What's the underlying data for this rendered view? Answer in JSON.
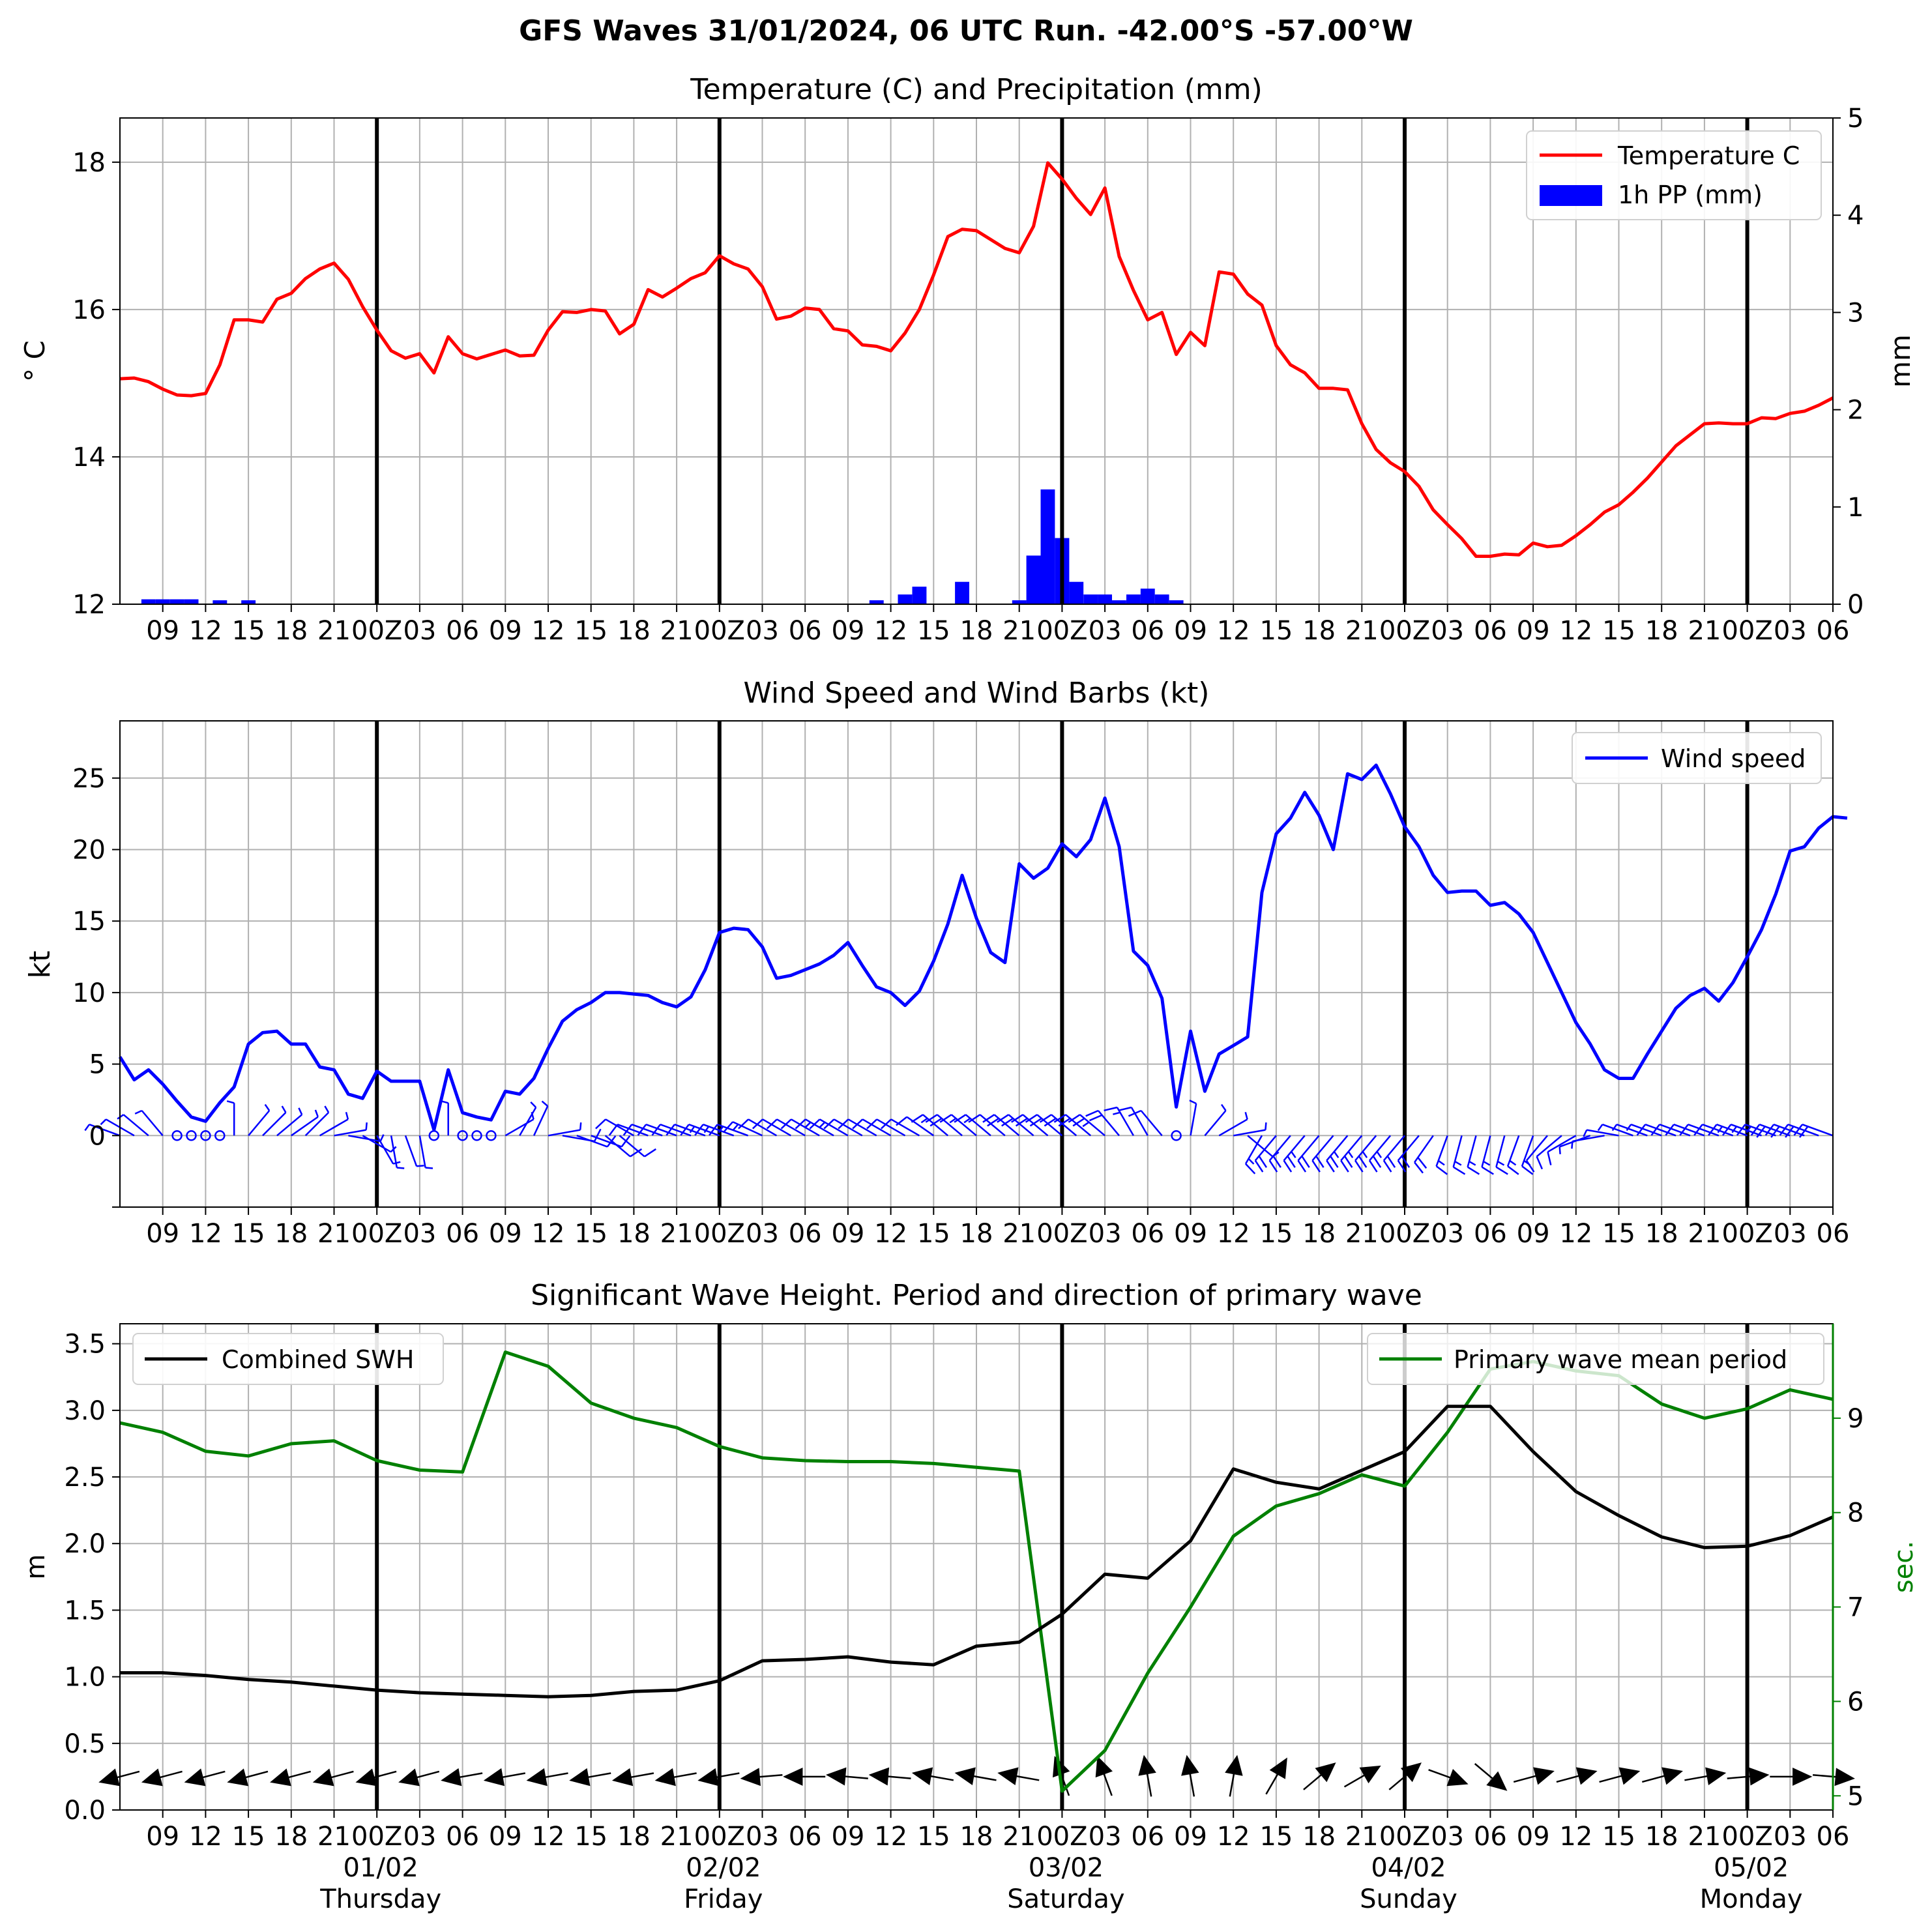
{
  "suptitle": "GFS Waves 31/01/2024, 06 UTC Run. -42.00°S -57.00°W",
  "x_axis": {
    "tick_labels": [
      "09",
      "12",
      "15",
      "18",
      "21",
      "00Z",
      "03",
      "06",
      "09",
      "12",
      "15",
      "18",
      "21",
      "00Z",
      "03",
      "06",
      "09",
      "12",
      "15",
      "18",
      "21",
      "00Z",
      "03",
      "06",
      "09",
      "12",
      "15",
      "18",
      "21",
      "00Z",
      "03",
      "06",
      "09",
      "12",
      "15",
      "18",
      "21",
      "00Z",
      "03",
      "06"
    ],
    "day_labels": [
      {
        "date": "01/02",
        "weekday": "Thursday"
      },
      {
        "date": "02/02",
        "weekday": "Friday"
      },
      {
        "date": "03/02",
        "weekday": "Saturday"
      },
      {
        "date": "04/02",
        "weekday": "Sunday"
      },
      {
        "date": "05/02",
        "weekday": "Monday"
      }
    ]
  },
  "colors": {
    "temperature": "#ff0000",
    "precipitation": "#0000ff",
    "wind": "#0000ff",
    "swh": "#000000",
    "period": "#008000",
    "day_divider": "#000000",
    "grid": "#b0b0b0"
  },
  "chart_data": [
    {
      "type": "line",
      "title": "Temperature (C) and Precipitation (mm)",
      "xlabel": "",
      "ylabel": "$^\\circ$C",
      "ylabel_display": "° C",
      "y2label": "mm",
      "ylim": [
        12,
        18.6
      ],
      "y2lim": [
        0,
        5
      ],
      "yticks": [
        "12",
        "14",
        "16",
        "18"
      ],
      "y2ticks": [
        "0",
        "1",
        "2",
        "3",
        "4",
        "5"
      ],
      "x_hours_start": 6,
      "x_hours_end": 126,
      "legend_placement": "top-right",
      "grid": true,
      "series": [
        {
          "name": "Temperature C",
          "kind": "line",
          "step_hours": 1,
          "values": [
            15.06,
            15.07,
            15.02,
            14.92,
            14.84,
            14.83,
            14.86,
            15.25,
            15.86,
            15.86,
            15.83,
            16.14,
            16.22,
            16.42,
            16.55,
            16.63,
            16.41,
            16.04,
            15.72,
            15.44,
            15.34,
            15.4,
            15.14,
            15.63,
            15.4,
            15.33,
            15.39,
            15.45,
            15.37,
            15.38,
            15.72,
            15.97,
            15.96,
            16.0,
            15.98,
            15.67,
            15.8,
            16.27,
            16.17,
            16.29,
            16.42,
            16.5,
            16.73,
            16.62,
            16.55,
            16.31,
            15.87,
            15.91,
            16.02,
            16.0,
            15.74,
            15.71,
            15.52,
            15.5,
            15.44,
            15.68,
            16.0,
            16.47,
            16.99,
            17.09,
            17.07,
            16.95,
            16.83,
            16.77,
            17.13,
            17.99,
            17.77,
            17.51,
            17.29,
            17.65,
            16.72,
            16.26,
            15.86,
            15.96,
            15.39,
            15.69,
            15.51,
            16.51,
            16.48,
            16.21,
            16.06,
            15.51,
            15.25,
            15.14,
            14.93,
            14.93,
            14.91,
            14.45,
            14.1,
            13.92,
            13.8,
            13.6,
            13.28,
            13.08,
            12.89,
            12.65,
            12.65,
            12.68,
            12.67,
            12.83,
            12.78,
            12.8,
            12.93,
            13.08,
            13.25,
            13.35,
            13.52,
            13.71,
            13.93,
            14.15,
            14.3,
            14.45,
            14.46,
            14.45,
            14.45,
            14.53,
            14.52,
            14.59,
            14.62,
            14.7,
            14.8
          ]
        },
        {
          "name": "1h PP (mm)",
          "kind": "bar",
          "axis": "right",
          "bars": [
            {
              "hour": 8,
              "value": 0.05
            },
            {
              "hour": 9,
              "value": 0.05
            },
            {
              "hour": 10,
              "value": 0.05
            },
            {
              "hour": 11,
              "value": 0.05
            },
            {
              "hour": 13,
              "value": 0.04
            },
            {
              "hour": 15,
              "value": 0.04
            },
            {
              "hour": 59,
              "value": 0.04
            },
            {
              "hour": 61,
              "value": 0.1
            },
            {
              "hour": 62,
              "value": 0.18
            },
            {
              "hour": 65,
              "value": 0.23
            },
            {
              "hour": 69,
              "value": 0.04
            },
            {
              "hour": 70,
              "value": 0.5
            },
            {
              "hour": 71,
              "value": 1.18
            },
            {
              "hour": 72,
              "value": 0.68
            },
            {
              "hour": 73,
              "value": 0.23
            },
            {
              "hour": 74,
              "value": 0.1
            },
            {
              "hour": 75,
              "value": 0.1
            },
            {
              "hour": 76,
              "value": 0.04
            },
            {
              "hour": 77,
              "value": 0.1
            },
            {
              "hour": 78,
              "value": 0.16
            },
            {
              "hour": 79,
              "value": 0.1
            },
            {
              "hour": 80,
              "value": 0.04
            }
          ]
        }
      ]
    },
    {
      "type": "line",
      "title": "Wind Speed and Wind Barbs (kt)",
      "xlabel": "",
      "ylabel": "kt",
      "ylim": [
        -5,
        29
      ],
      "yticks": [
        "0",
        "5",
        "10",
        "15",
        "20",
        "25"
      ],
      "x_hours_start": 6,
      "x_hours_end": 126,
      "legend_placement": "top-right",
      "grid": true,
      "series": [
        {
          "name": "Wind speed",
          "kind": "line",
          "step_hours": 1,
          "values": [
            5.5,
            3.9,
            4.6,
            3.6,
            2.4,
            1.3,
            1.0,
            2.3,
            3.4,
            6.4,
            7.2,
            7.3,
            6.4,
            6.4,
            4.8,
            4.6,
            2.9,
            2.6,
            4.5,
            3.8,
            3.8,
            3.8,
            0.4,
            4.6,
            1.6,
            1.3,
            1.1,
            3.1,
            2.9,
            4.0,
            6.1,
            8.0,
            8.8,
            9.3,
            10.0,
            10.0,
            9.9,
            9.8,
            9.3,
            9.0,
            9.7,
            11.6,
            14.2,
            14.5,
            14.4,
            13.2,
            11.0,
            11.2,
            11.6,
            12.0,
            12.6,
            13.5,
            11.9,
            10.4,
            10.0,
            9.1,
            10.1,
            12.2,
            14.8,
            18.2,
            15.2,
            12.8,
            12.1,
            19.0,
            18.0,
            18.7,
            20.4,
            19.5,
            20.7,
            23.6,
            20.2,
            12.9,
            11.9,
            9.6,
            2.0,
            7.3,
            3.1,
            5.7,
            6.3,
            6.9,
            17.0,
            21.1,
            22.2,
            24.0,
            22.4,
            20.0,
            25.3,
            24.9,
            25.9,
            23.9,
            21.6,
            20.2,
            18.2,
            17.0,
            17.1,
            17.1,
            16.1,
            16.3,
            15.5,
            14.2,
            12.1,
            10.0,
            7.9,
            6.4,
            4.6,
            4.0,
            4.0,
            5.7,
            7.3,
            8.9,
            9.8,
            10.3,
            9.4,
            10.7,
            12.5,
            14.4,
            16.9,
            19.9,
            20.2,
            21.5,
            22.3,
            22.2
          ]
        }
      ],
      "barbs": {
        "start_hour": 6,
        "step_hours": 1,
        "speed_kt": "same as Wind speed",
        "direction_deg_from": [
          290,
          300,
          310,
          320,
          330,
          0,
          0,
          0,
          0,
          40,
          45,
          50,
          55,
          45,
          60,
          80,
          100,
          120,
          150,
          170,
          160,
          170,
          110,
          0,
          0,
          0,
          0,
          60,
          30,
          25,
          80,
          100,
          110,
          110,
          130,
          130,
          300,
          290,
          290,
          290,
          290,
          290,
          290,
          290,
          290,
          295,
          300,
          300,
          300,
          300,
          300,
          300,
          300,
          300,
          300,
          300,
          300,
          305,
          310,
          310,
          310,
          310,
          310,
          310,
          310,
          310,
          310,
          310,
          310,
          310,
          320,
          330,
          330,
          320,
          20,
          10,
          40,
          60,
          80,
          130,
          210,
          220,
          220,
          220,
          220,
          220,
          220,
          220,
          220,
          220,
          220,
          220,
          215,
          200,
          195,
          195,
          195,
          195,
          200,
          200,
          220,
          230,
          240,
          250,
          260,
          280,
          290,
          290,
          290,
          290,
          290,
          290,
          290,
          290,
          290,
          290,
          290,
          290,
          290,
          290,
          290
        ]
      }
    },
    {
      "type": "line",
      "title": "Significant Wave Height. Period and direction of primary wave",
      "xlabel": "",
      "ylabel": "m",
      "y2label": "sec.",
      "ylim": [
        0,
        3.65
      ],
      "y2lim": [
        4.85,
        10.0
      ],
      "yticks": [
        "0.0",
        "0.5",
        "1.0",
        "1.5",
        "2.0",
        "2.5",
        "3.0",
        "3.5"
      ],
      "y2ticks": [
        "5",
        "6",
        "7",
        "8",
        "9"
      ],
      "x_hours_start": 6,
      "x_hours_end": 126,
      "grid": true,
      "legend_placement": "top-left and top-right",
      "series": [
        {
          "name": "Combined SWH",
          "kind": "line",
          "step_hours": 3,
          "values": [
            1.03,
            1.03,
            1.01,
            0.98,
            0.96,
            0.93,
            0.9,
            0.88,
            0.87,
            0.86,
            0.85,
            0.86,
            0.89,
            0.9,
            0.97,
            1.12,
            1.13,
            1.15,
            1.11,
            1.09,
            1.23,
            1.26,
            1.47,
            1.77,
            1.74,
            2.02,
            2.56,
            2.46,
            2.41,
            2.55,
            2.69,
            3.03,
            3.03,
            2.69,
            2.39,
            2.21,
            2.05,
            1.97,
            1.98,
            2.06,
            2.2
          ]
        },
        {
          "name": "Primary wave mean period",
          "kind": "line",
          "axis": "right",
          "step_hours": 3,
          "values": [
            8.95,
            8.85,
            8.65,
            8.6,
            8.73,
            8.76,
            8.55,
            8.45,
            8.43,
            9.7,
            9.55,
            9.16,
            9.0,
            8.9,
            8.7,
            8.58,
            8.55,
            8.54,
            8.54,
            8.52,
            8.48,
            8.44,
            5.05,
            5.48,
            6.3,
            7.0,
            7.75,
            8.07,
            8.2,
            8.4,
            8.28,
            8.85,
            9.52,
            9.6,
            9.5,
            9.45,
            9.15,
            9.0,
            9.1,
            9.3,
            9.2
          ]
        }
      ],
      "direction_arrows": {
        "start_hour": 6,
        "step_hours": 3,
        "angle_deg": [
          195,
          195,
          195,
          195,
          195,
          195,
          195,
          195,
          190,
          190,
          190,
          190,
          190,
          190,
          190,
          185,
          180,
          175,
          175,
          170,
          170,
          170,
          110,
          110,
          100,
          100,
          80,
          60,
          40,
          30,
          40,
          340,
          320,
          15,
          15,
          15,
          15,
          10,
          5,
          0,
          -5
        ]
      }
    }
  ]
}
